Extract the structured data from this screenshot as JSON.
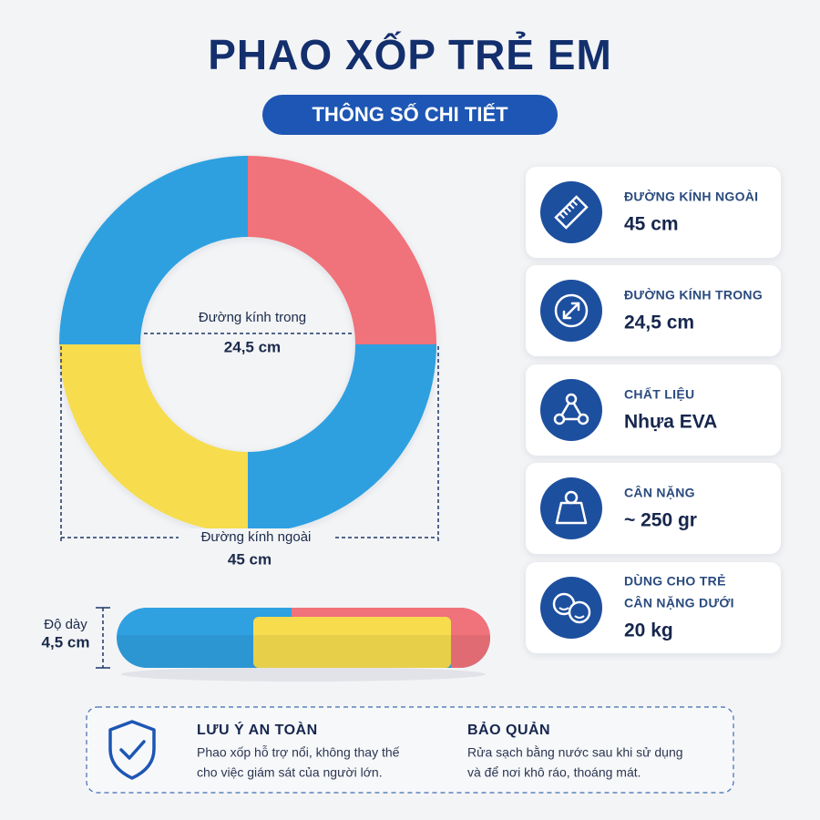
{
  "header": {
    "title": "PHAO XỐP TRẺ EM",
    "subtitle": "THÔNG SỐ CHI TIẾT"
  },
  "ring": {
    "inner_label": "Đường kính trong",
    "inner_value": "24,5 cm",
    "outer_label": "Đường kính ngoài",
    "outer_value": "45 cm",
    "thickness_label": "Độ dày",
    "thickness_value": "4,5 cm"
  },
  "specs": [
    {
      "label": [
        "ĐƯỜNG KÍNH NGOÀI"
      ],
      "value": "45 cm"
    },
    {
      "label": [
        "ĐƯỜNG KÍNH TRONG"
      ],
      "value": "24,5 cm"
    },
    {
      "label": [
        "CHẤT LIỆU"
      ],
      "value": "Nhựa EVA"
    },
    {
      "label": [
        "CÂN NẶNG"
      ],
      "value": "~ 250 gr"
    },
    {
      "label": [
        "DÙNG CHO TRẺ",
        "CÂN NẶNG DƯỚI"
      ],
      "value": "20 kg"
    }
  ],
  "notes": {
    "safety": {
      "title": "LƯU Ý AN TOÀN",
      "lines": [
        "Phao xốp hỗ trợ nổi, không thay thế",
        "cho việc giám sát của người lớn."
      ]
    },
    "care": {
      "title": "BẢO QUẢN",
      "lines": [
        "Rửa sạch bằng nước sau khi sử dụng",
        "và để nơi khô ráo, thoáng mát."
      ]
    }
  }
}
